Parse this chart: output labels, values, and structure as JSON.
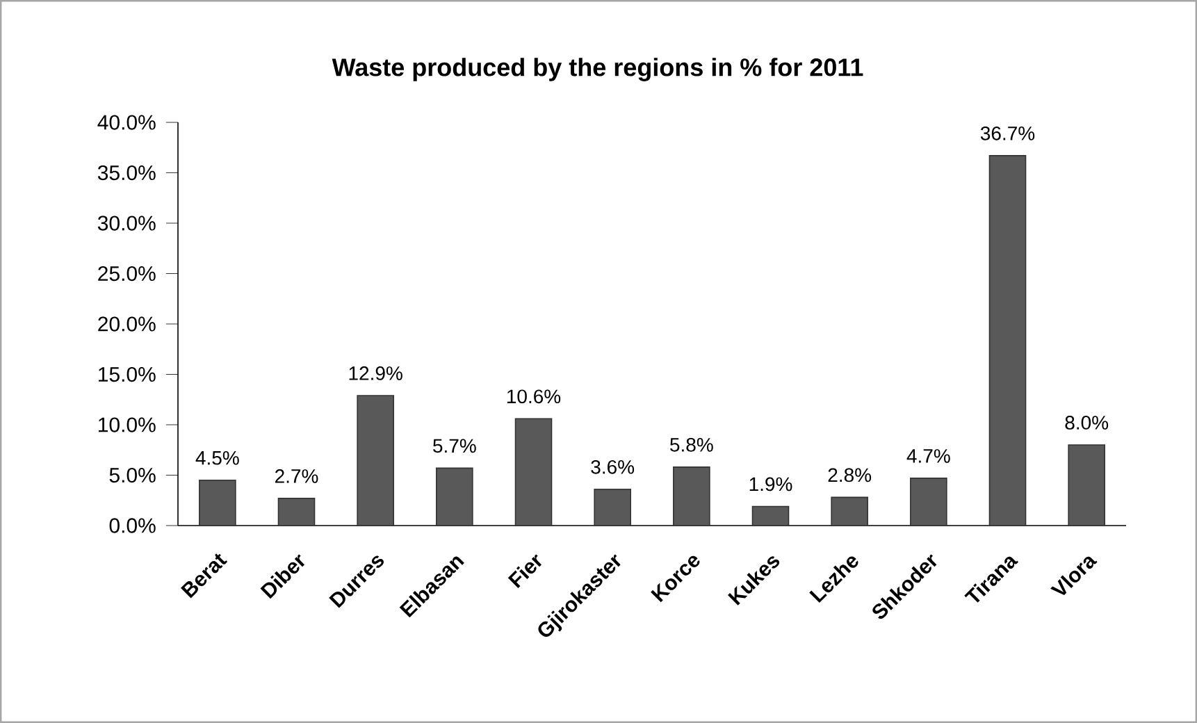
{
  "chart_data": {
    "type": "bar",
    "title": "Waste produced by the regions in % for 2011",
    "categories": [
      "Berat",
      "Diber",
      "Durres",
      "Elbasan",
      "Fier",
      "Gjirokaster",
      "Korce",
      "Kukes",
      "Lezhe",
      "Shkoder",
      "Tirana",
      "Vlora"
    ],
    "values": [
      4.5,
      2.7,
      12.9,
      5.7,
      10.6,
      3.6,
      5.8,
      1.9,
      2.8,
      4.7,
      36.7,
      8.0
    ],
    "value_labels": [
      "4.5%",
      "2.7%",
      "12.9%",
      "5.7%",
      "10.6%",
      "3.6%",
      "5.8%",
      "1.9%",
      "2.8%",
      "4.7%",
      "36.7%",
      "8.0%"
    ],
    "color": "#595959",
    "ylim": [
      0,
      40
    ],
    "yticks": [
      {
        "value": 0,
        "label": "0.0%"
      },
      {
        "value": 5,
        "label": "5.0%"
      },
      {
        "value": 10,
        "label": "10.0%"
      },
      {
        "value": 15,
        "label": "15.0%"
      },
      {
        "value": 20,
        "label": "20.0%"
      },
      {
        "value": 25,
        "label": "25.0%"
      },
      {
        "value": 30,
        "label": "30.0%"
      },
      {
        "value": 35,
        "label": "35.0%"
      },
      {
        "value": 40,
        "label": "40.0%"
      }
    ]
  }
}
